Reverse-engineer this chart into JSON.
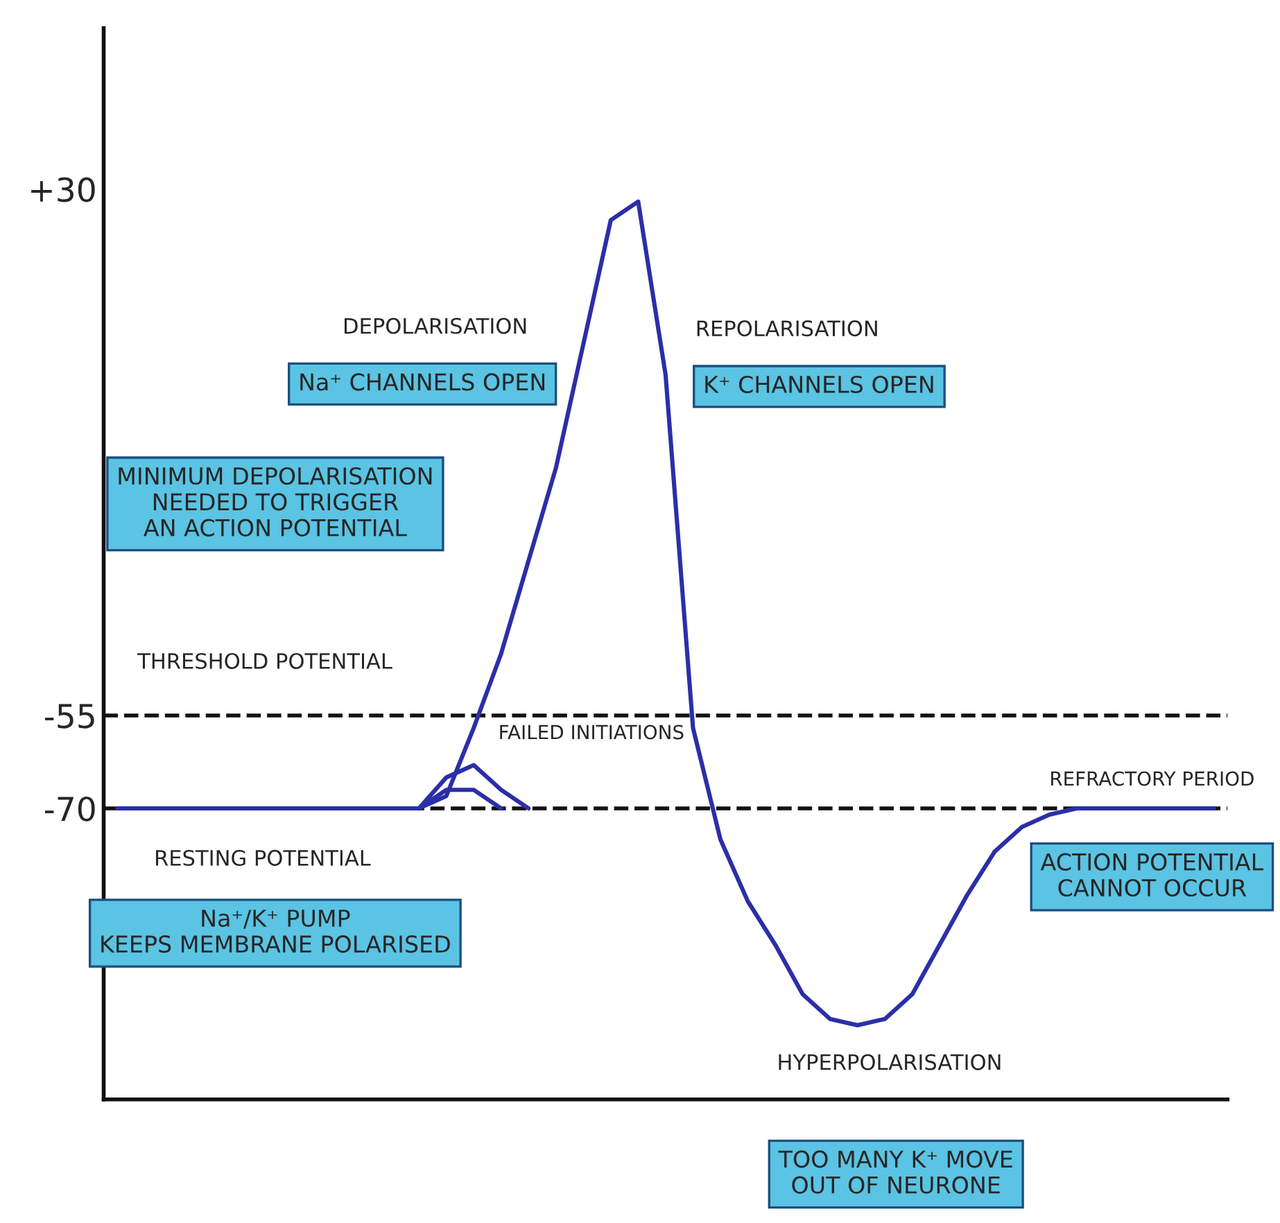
{
  "chart_data": {
    "type": "line",
    "categories": [
      null,
      null,
      null,
      null,
      null,
      null,
      null,
      null,
      null,
      null,
      null,
      null,
      null,
      null,
      null,
      null,
      null,
      null,
      null,
      null,
      null,
      null,
      null,
      null,
      null,
      null,
      null,
      null,
      null,
      null,
      null,
      null,
      null,
      null,
      null,
      null,
      null,
      null,
      null,
      null,
      null
    ],
    "series": [
      {
        "color": "#2b2fa8",
        "values": [
          -70,
          -70,
          -70,
          -70,
          -70,
          -70,
          -70,
          -70,
          -70,
          -70,
          -70,
          -70,
          -68,
          -57,
          -45,
          -30,
          -15,
          5,
          25,
          28,
          0,
          -57,
          -75,
          -85,
          -92,
          -100,
          -104,
          -105,
          -104,
          -100,
          -92,
          -84,
          -77,
          -73,
          -71,
          -70,
          -70,
          -70,
          -70,
          -70,
          -70
        ]
      },
      {
        "color": "#2b2fa8",
        "values": [
          null,
          null,
          null,
          null,
          null,
          null,
          null,
          null,
          null,
          null,
          null,
          -70,
          -65,
          -63,
          -67,
          -70,
          null,
          null,
          null,
          null,
          null,
          null,
          null,
          null,
          null,
          null,
          null,
          null,
          null,
          null,
          null,
          null,
          null,
          null,
          null,
          null,
          null,
          null,
          null,
          null,
          null
        ]
      },
      {
        "color": "#2b2fa8",
        "values": [
          null,
          null,
          null,
          null,
          null,
          null,
          null,
          null,
          null,
          null,
          null,
          -70,
          -67,
          -67,
          -70,
          null,
          null,
          null,
          null,
          null,
          null,
          null,
          null,
          null,
          null,
          null,
          null,
          null,
          null,
          null,
          null,
          null,
          null,
          null,
          null,
          null,
          null,
          null,
          null,
          null,
          null
        ]
      }
    ],
    "ylim": [
      -117,
      56
    ],
    "yticks": [
      {
        "value": 30,
        "label": "+30"
      },
      -55,
      -70
    ],
    "tick_labels": "y",
    "ref_lines": [
      {
        "axis": "y",
        "value": -55,
        "label": "THRESHOLD POTENTIAL",
        "line_style": "dashed",
        "color": "#111111"
      },
      {
        "axis": "y",
        "value": -70,
        "line_style": "dashed",
        "color": "#111111"
      }
    ],
    "annotations": [
      "DEPOLARISATION",
      "Na⁺ CHANNELS OPEN",
      "REPOLARISATION",
      "K⁺ CHANNELS OPEN",
      "MINIMUM DEPOLARISATION\nNEEDED TO TRIGGER\nAN ACTION POTENTIAL",
      "FAILED INITIATIONS",
      "RESTING POTENTIAL",
      "Na⁺/K⁺ PUMP\nKEEPS MEMBRANE POLARISED",
      "HYPERPOLARISATION",
      "TOO MANY K⁺ MOVE\nOUT OF NEURONE",
      "REFRACTORY PERIOD",
      "ACTION POTENTIAL\nCANNOT OCCUR"
    ]
  }
}
